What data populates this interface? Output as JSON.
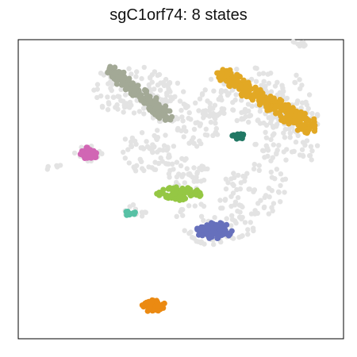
{
  "chart_data": {
    "type": "scatter",
    "title": "sgC1orf74: 8 states",
    "xlabel": "",
    "ylabel": "",
    "grid": false,
    "legend": "none",
    "axes": {
      "ticks": false,
      "frame": true
    },
    "background_cells_color": "#e3e3e3",
    "series": [
      {
        "color": "#a3a996",
        "x_range": [
          -6.2,
          -1.1
        ],
        "y_range": [
          2.0,
          6.4
        ],
        "approx_points": 180
      },
      {
        "color": "#e2a824",
        "x_range": [
          3.4,
          11.3
        ],
        "y_range": [
          1.0,
          6.0
        ],
        "approx_points": 260
      },
      {
        "color": "#d166b4",
        "x_range": [
          -8.7,
          -7.2
        ],
        "y_range": [
          -1.9,
          -0.7
        ],
        "approx_points": 40
      },
      {
        "color": "#217864",
        "x_range": [
          4.4,
          5.6
        ],
        "y_range": [
          0.0,
          0.5
        ],
        "approx_points": 18
      },
      {
        "color": "#95c744",
        "x_range": [
          -2.1,
          1.8
        ],
        "y_range": [
          -5.5,
          -4.3
        ],
        "approx_points": 60
      },
      {
        "color": "#57c1a5",
        "x_range": [
          -4.9,
          -3.9
        ],
        "y_range": [
          -6.9,
          -6.3
        ],
        "approx_points": 12
      },
      {
        "color": "#6670bc",
        "x_range": [
          1.3,
          4.6
        ],
        "y_range": [
          -9.0,
          -7.5
        ],
        "approx_points": 70
      },
      {
        "color": "#eb8a12",
        "x_range": [
          -3.4,
          -1.3
        ],
        "y_range": [
          -15.6,
          -14.5
        ],
        "approx_points": 40
      }
    ]
  }
}
